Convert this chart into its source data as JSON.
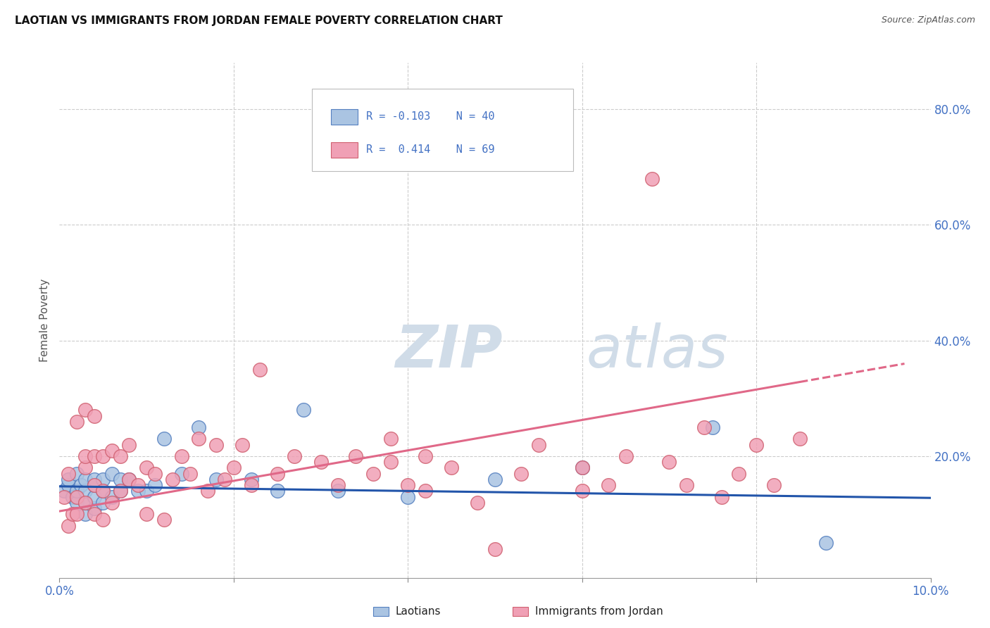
{
  "title": "LAOTIAN VS IMMIGRANTS FROM JORDAN FEMALE POVERTY CORRELATION CHART",
  "source": "Source: ZipAtlas.com",
  "ylabel": "Female Poverty",
  "xlim": [
    0.0,
    0.1
  ],
  "ylim": [
    -0.01,
    0.88
  ],
  "color_laotian": "#aac4e2",
  "color_laotian_edge": "#5580c0",
  "color_jordan": "#f0a0b5",
  "color_jordan_edge": "#d06070",
  "color_laotian_line": "#2255aa",
  "color_jordan_line": "#e06888",
  "watermark_zip": "ZIP",
  "watermark_atlas": "atlas",
  "watermark_color": "#d0dce8",
  "laotian_x": [
    0.0005,
    0.001,
    0.001,
    0.0015,
    0.002,
    0.002,
    0.002,
    0.0025,
    0.003,
    0.003,
    0.003,
    0.003,
    0.004,
    0.004,
    0.004,
    0.004,
    0.005,
    0.005,
    0.005,
    0.006,
    0.006,
    0.007,
    0.007,
    0.008,
    0.009,
    0.01,
    0.011,
    0.012,
    0.014,
    0.016,
    0.018,
    0.022,
    0.025,
    0.028,
    0.032,
    0.04,
    0.05,
    0.06,
    0.075,
    0.088
  ],
  "laotian_y": [
    0.14,
    0.15,
    0.16,
    0.13,
    0.12,
    0.14,
    0.17,
    0.15,
    0.1,
    0.12,
    0.14,
    0.16,
    0.11,
    0.13,
    0.15,
    0.16,
    0.12,
    0.14,
    0.16,
    0.13,
    0.17,
    0.14,
    0.16,
    0.16,
    0.14,
    0.14,
    0.15,
    0.23,
    0.17,
    0.25,
    0.16,
    0.16,
    0.14,
    0.28,
    0.14,
    0.13,
    0.16,
    0.18,
    0.25,
    0.05
  ],
  "jordan_x": [
    0.0005,
    0.001,
    0.001,
    0.0015,
    0.002,
    0.002,
    0.002,
    0.003,
    0.003,
    0.003,
    0.003,
    0.004,
    0.004,
    0.004,
    0.004,
    0.005,
    0.005,
    0.005,
    0.006,
    0.006,
    0.007,
    0.007,
    0.008,
    0.008,
    0.009,
    0.01,
    0.01,
    0.011,
    0.012,
    0.013,
    0.014,
    0.015,
    0.016,
    0.017,
    0.018,
    0.019,
    0.02,
    0.021,
    0.022,
    0.023,
    0.025,
    0.027,
    0.03,
    0.032,
    0.034,
    0.036,
    0.038,
    0.038,
    0.04,
    0.042,
    0.042,
    0.045,
    0.048,
    0.05,
    0.053,
    0.055,
    0.06,
    0.06,
    0.063,
    0.065,
    0.068,
    0.07,
    0.072,
    0.074,
    0.076,
    0.078,
    0.08,
    0.082,
    0.085
  ],
  "jordan_y": [
    0.13,
    0.08,
    0.17,
    0.1,
    0.1,
    0.13,
    0.26,
    0.12,
    0.18,
    0.2,
    0.28,
    0.1,
    0.15,
    0.2,
    0.27,
    0.09,
    0.14,
    0.2,
    0.12,
    0.21,
    0.14,
    0.2,
    0.16,
    0.22,
    0.15,
    0.1,
    0.18,
    0.17,
    0.09,
    0.16,
    0.2,
    0.17,
    0.23,
    0.14,
    0.22,
    0.16,
    0.18,
    0.22,
    0.15,
    0.35,
    0.17,
    0.2,
    0.19,
    0.15,
    0.2,
    0.17,
    0.19,
    0.23,
    0.15,
    0.14,
    0.2,
    0.18,
    0.12,
    0.04,
    0.17,
    0.22,
    0.14,
    0.18,
    0.15,
    0.2,
    0.68,
    0.19,
    0.15,
    0.25,
    0.13,
    0.17,
    0.22,
    0.15,
    0.23
  ],
  "trend_laotian_x0": 0.0,
  "trend_laotian_x1": 0.1,
  "trend_laotian_y0": 0.148,
  "trend_laotian_y1": 0.128,
  "trend_jordan_x0": 0.0,
  "trend_jordan_x1": 0.097,
  "trend_jordan_solid_end": 0.085,
  "trend_jordan_y0": 0.105,
  "trend_jordan_y1": 0.36
}
